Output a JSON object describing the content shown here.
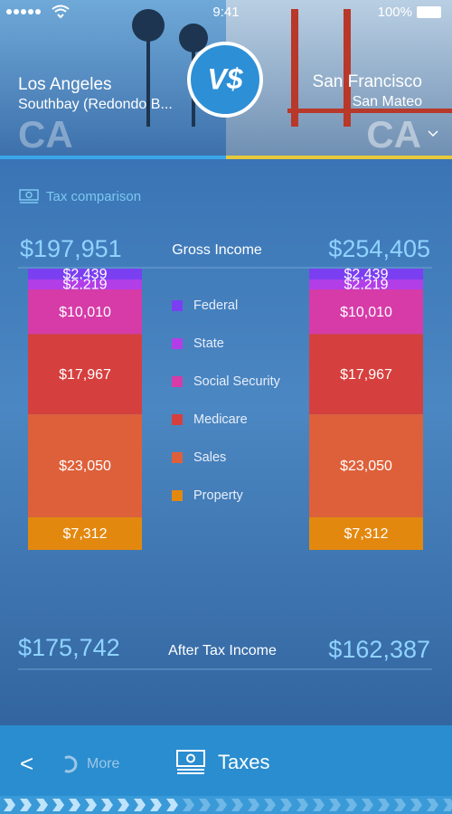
{
  "status_bar": {
    "time": "9:41",
    "battery": "100%"
  },
  "header": {
    "logo": "V$",
    "left": {
      "area": "Southbay (Redondo B...",
      "state": "CA"
    },
    "right": {
      "area": "San Mateo",
      "state": "CA"
    }
  },
  "section_title": "Tax comparison",
  "gross_income": {
    "label": "Gross Income",
    "left": "$197,951",
    "right": "$254,405"
  },
  "after_tax_income": {
    "label": "After Tax Income",
    "left": "$175,742",
    "right": "$162,387"
  },
  "chart_data": {
    "type": "stacked-bar",
    "categories": [
      "Los Angeles",
      "San Francisco"
    ],
    "series": [
      {
        "name": "Federal",
        "color": "#7b3ff2",
        "values": [
          2439,
          2439
        ],
        "value_labels": [
          "$2,439",
          "$2,439"
        ]
      },
      {
        "name": "State",
        "color": "#b23ee8",
        "values": [
          2219,
          2219
        ],
        "value_labels": [
          "$2,219",
          "$2,219"
        ]
      },
      {
        "name": "Social Security",
        "color": "#d63ba8",
        "values": [
          10010,
          10010
        ],
        "value_labels": [
          "$10,010",
          "$10,010"
        ]
      },
      {
        "name": "Medicare",
        "color": "#d5403e",
        "values": [
          17967,
          17967
        ],
        "value_labels": [
          "$17,967",
          "$17,967"
        ]
      },
      {
        "name": "Sales",
        "color": "#de603a",
        "values": [
          23050,
          23050
        ],
        "value_labels": [
          "$23,050",
          "$23,050"
        ]
      },
      {
        "name": "Property",
        "color": "#e3880f",
        "values": [
          7312,
          7312
        ],
        "value_labels": [
          "$7,312",
          "$7,312"
        ]
      }
    ]
  },
  "nav": {
    "back": "<",
    "more": "More",
    "current": "Taxes"
  }
}
